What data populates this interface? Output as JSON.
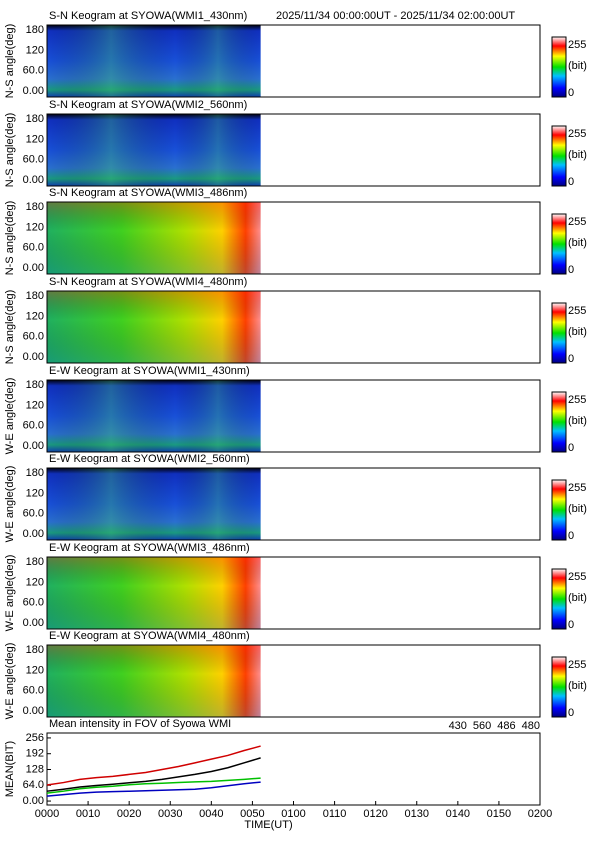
{
  "header": {
    "period": "2025/11/34 00:00:00UT - 2025/11/34 02:00:00UT"
  },
  "chart_data": [
    {
      "type": "keogram",
      "title": "S-N Keogram at SYOWA(WMI1_430nm)",
      "ylabel": "N-S angle(deg)",
      "ylim": [
        -18,
        195
      ],
      "yticks": [
        {
          "value": 0,
          "label": "0.00"
        },
        {
          "value": 60,
          "label": "60.0"
        },
        120,
        180
      ],
      "xlim": [
        0,
        120
      ],
      "extent": [
        0,
        52
      ],
      "palette": "cold",
      "cticks": [
        0,
        255
      ],
      "clabel": "(bit)"
    },
    {
      "type": "keogram",
      "title": "S-N Keogram at SYOWA(WMI2_560nm)",
      "ylabel": "N-S angle(deg)",
      "ylim": [
        -18,
        195
      ],
      "yticks": [
        {
          "value": 0,
          "label": "0.00"
        },
        {
          "value": 60,
          "label": "60.0"
        },
        120,
        180
      ],
      "xlim": [
        0,
        120
      ],
      "extent": [
        0,
        52
      ],
      "palette": "cold",
      "cticks": [
        0,
        255
      ],
      "clabel": "(bit)"
    },
    {
      "type": "keogram",
      "title": "S-N Keogram at SYOWA(WMI3_486nm)",
      "ylabel": "N-S angle(deg)",
      "ylim": [
        -18,
        195
      ],
      "yticks": [
        {
          "value": 0,
          "label": "0.00"
        },
        {
          "value": 60,
          "label": "60.0"
        },
        120,
        180
      ],
      "xlim": [
        0,
        120
      ],
      "extent": [
        0,
        52
      ],
      "palette": "warm",
      "cticks": [
        0,
        255
      ],
      "clabel": "(bit)"
    },
    {
      "type": "keogram",
      "title": "S-N Keogram at SYOWA(WMI4_480nm)",
      "ylabel": "N-S angle(deg)",
      "ylim": [
        -18,
        195
      ],
      "yticks": [
        {
          "value": 0,
          "label": "0.00"
        },
        {
          "value": 60,
          "label": "60.0"
        },
        120,
        180
      ],
      "xlim": [
        0,
        120
      ],
      "extent": [
        0,
        52
      ],
      "palette": "warm",
      "cticks": [
        0,
        255
      ],
      "clabel": "(bit)"
    },
    {
      "type": "keogram",
      "title": "E-W Keogram at SYOWA(WMI1_430nm)",
      "ylabel": "W-E angle(deg)",
      "ylim": [
        -18,
        195
      ],
      "yticks": [
        {
          "value": 0,
          "label": "0.00"
        },
        {
          "value": 60,
          "label": "60.0"
        },
        120,
        180
      ],
      "xlim": [
        0,
        120
      ],
      "extent": [
        0,
        52
      ],
      "palette": "cold",
      "cticks": [
        0,
        255
      ],
      "clabel": "(bit)"
    },
    {
      "type": "keogram",
      "title": "E-W Keogram at SYOWA(WMI2_560nm)",
      "ylabel": "W-E angle(deg)",
      "ylim": [
        -18,
        195
      ],
      "yticks": [
        {
          "value": 0,
          "label": "0.00"
        },
        {
          "value": 60,
          "label": "60.0"
        },
        120,
        180
      ],
      "xlim": [
        0,
        120
      ],
      "extent": [
        0,
        52
      ],
      "palette": "cold",
      "cticks": [
        0,
        255
      ],
      "clabel": "(bit)"
    },
    {
      "type": "keogram",
      "title": "E-W Keogram at SYOWA(WMI3_486nm)",
      "ylabel": "W-E angle(deg)",
      "ylim": [
        -18,
        195
      ],
      "yticks": [
        {
          "value": 0,
          "label": "0.00"
        },
        {
          "value": 60,
          "label": "60.0"
        },
        120,
        180
      ],
      "xlim": [
        0,
        120
      ],
      "extent": [
        0,
        52
      ],
      "palette": "warm",
      "cticks": [
        0,
        255
      ],
      "clabel": "(bit)"
    },
    {
      "type": "keogram",
      "title": "E-W Keogram at SYOWA(WMI4_480nm)",
      "ylabel": "W-E angle(deg)",
      "ylim": [
        -18,
        195
      ],
      "yticks": [
        {
          "value": 0,
          "label": "0.00"
        },
        {
          "value": 60,
          "label": "60.0"
        },
        120,
        180
      ],
      "xlim": [
        0,
        120
      ],
      "extent": [
        0,
        52
      ],
      "palette": "warm",
      "cticks": [
        0,
        255
      ],
      "clabel": "(bit)"
    },
    {
      "type": "line",
      "title": "Mean intensity in FOV of Syowa WMI",
      "ylabel": "MEAN(BIT)",
      "xlabel": "TIME(UT)",
      "ylim": [
        -16,
        276
      ],
      "yticks": [
        {
          "value": 0,
          "label": "0.00"
        },
        {
          "value": 64,
          "label": "64.0"
        },
        128,
        192,
        256
      ],
      "xlim": [
        0,
        120
      ],
      "xticks": [
        {
          "value": 0,
          "label": "0000"
        },
        {
          "value": 10,
          "label": "0010"
        },
        {
          "value": 20,
          "label": "0020"
        },
        {
          "value": 30,
          "label": "0030"
        },
        {
          "value": 40,
          "label": "0040"
        },
        {
          "value": 50,
          "label": "0050"
        },
        {
          "value": 60,
          "label": "0100"
        },
        {
          "value": 70,
          "label": "0110"
        },
        {
          "value": 80,
          "label": "0120"
        },
        {
          "value": 90,
          "label": "0130"
        },
        {
          "value": 100,
          "label": "0140"
        },
        {
          "value": 110,
          "label": "0150"
        },
        {
          "value": 120,
          "label": "0200"
        }
      ],
      "x": [
        0,
        4,
        8,
        12,
        16,
        20,
        24,
        28,
        32,
        36,
        40,
        44,
        48,
        52
      ],
      "series": [
        {
          "name": "430",
          "color": "#0000c0",
          "values": [
            20,
            26,
            32,
            36,
            38,
            40,
            42,
            44,
            46,
            48,
            54,
            62,
            70,
            77
          ]
        },
        {
          "name": "560",
          "color": "#00c000",
          "values": [
            32,
            40,
            50,
            56,
            60,
            66,
            70,
            72,
            75,
            78,
            80,
            84,
            88,
            93
          ]
        },
        {
          "name": "486",
          "color": "#d00000",
          "values": [
            65,
            75,
            88,
            95,
            100,
            108,
            116,
            128,
            140,
            155,
            170,
            185,
            205,
            223
          ]
        },
        {
          "name": "480",
          "color": "#000000",
          "values": [
            40,
            48,
            57,
            63,
            68,
            74,
            80,
            88,
            98,
            108,
            120,
            135,
            155,
            175
          ]
        }
      ]
    }
  ]
}
